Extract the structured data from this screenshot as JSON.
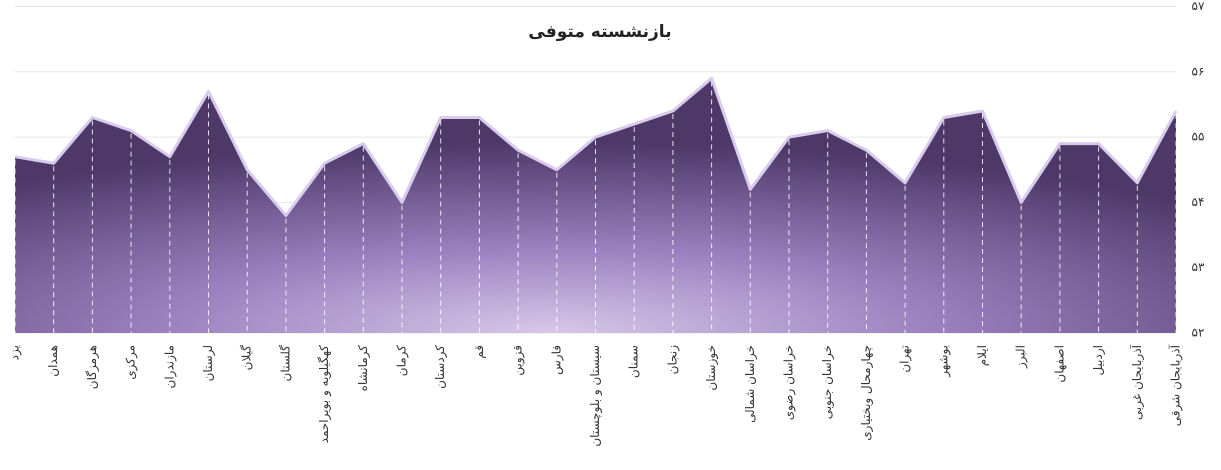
{
  "chart_data": {
    "type": "area",
    "title": "بازنشسته متوفی",
    "categories": [
      "یزد",
      "همدان",
      "هرمزگان",
      "مرکزی",
      "مازندران",
      "لرستان",
      "گیلان",
      "گلستان",
      "کهگیلویه و بویراحمد",
      "کرمانشاه",
      "کرمان",
      "کردستان",
      "قم",
      "قزوین",
      "فارس",
      "سیستان و بلوچستان",
      "سمنان",
      "زنجان",
      "خوزستان",
      "خراسان شمالی",
      "خراسان رضوی",
      "خراسان جنوبی",
      "چهارمحال وبختیاری",
      "تهران",
      "بوشهر",
      "ایلام",
      "البرز",
      "اصفهان",
      "اردبیل",
      "آذربایجان غربی",
      "آذربایجان شرقی"
    ],
    "values": [
      54.7,
      54.6,
      55.3,
      55.1,
      54.7,
      55.7,
      54.5,
      53.8,
      54.6,
      54.9,
      54.0,
      55.3,
      55.3,
      54.8,
      54.5,
      55.0,
      55.2,
      55.4,
      55.9,
      54.2,
      55.0,
      55.1,
      54.8,
      54.3,
      55.3,
      55.4,
      54.0,
      54.9,
      54.9,
      54.3,
      55.4
    ],
    "color": "#7a5fa0",
    "ylim": [
      52,
      57
    ],
    "yticks": [
      {
        "value": 52,
        "label": "۵۲"
      },
      {
        "value": 53,
        "label": "۵۳"
      },
      {
        "value": 54,
        "label": "۵۴"
      },
      {
        "value": 55,
        "label": "۵۵"
      },
      {
        "value": 56,
        "label": "۵۶"
      },
      {
        "value": 57,
        "label": "۵۷"
      }
    ],
    "grid": true
  }
}
